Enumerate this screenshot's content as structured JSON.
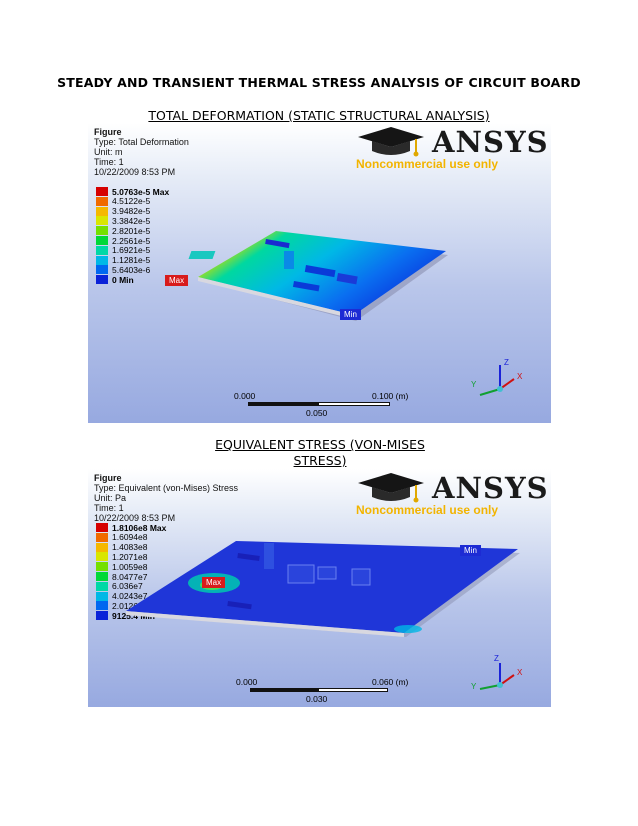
{
  "document": {
    "title": "STEADY AND TRANSIENT THERMAL STRESS ANALYSIS OF CIRCUIT BOARD"
  },
  "figures": [
    {
      "caption": "TOTAL DEFORMATION (STATIC STRUCTURAL ANALYSIS)",
      "info": {
        "heading": "Figure",
        "type": "Type: Total Deformation",
        "unit": "Unit: m",
        "time": "Time: 1",
        "date": "10/22/2009 8:53 PM"
      },
      "logo": {
        "word": "ANSYS",
        "tagline": "Noncommercial use only"
      },
      "legend": [
        {
          "label": "5.0763e-5 Max",
          "color": "#d60000"
        },
        {
          "label": "4.5122e-5",
          "color": "#f06a00"
        },
        {
          "label": "3.9482e-5",
          "color": "#f5b800"
        },
        {
          "label": "3.3842e-5",
          "color": "#d9e600"
        },
        {
          "label": "2.8201e-5",
          "color": "#74e000"
        },
        {
          "label": "2.2561e-5",
          "color": "#00d838"
        },
        {
          "label": "1.6921e-5",
          "color": "#00d8a6"
        },
        {
          "label": "1.1281e-5",
          "color": "#00b8e6"
        },
        {
          "label": "5.6403e-6",
          "color": "#0067f0"
        },
        {
          "label": "0 Min",
          "color": "#0a22d8"
        }
      ],
      "max_tag": "Max",
      "min_tag": "Min",
      "scale": {
        "start": "0.000",
        "mid": "0.050",
        "end": "0.100 (m)"
      },
      "axes": {
        "z": "Z",
        "y": "Y",
        "x": "X"
      }
    },
    {
      "caption": "EQUIVALENT STRESS (VON-MISES STRESS)",
      "caption_line1": "EQUIVALENT STRESS  (VON-MISES",
      "caption_line2": "STRESS)",
      "info": {
        "heading": "Figure",
        "type": "Type: Equivalent (von-Mises) Stress",
        "unit": "Unit: Pa",
        "time": "Time: 1",
        "date": "10/22/2009 8:53 PM"
      },
      "logo": {
        "word": "ANSYS",
        "tagline": "Noncommercial use only"
      },
      "legend": [
        {
          "label": "1.8106e8 Max",
          "color": "#d60000"
        },
        {
          "label": "1.6094e8",
          "color": "#f06a00"
        },
        {
          "label": "1.4083e8",
          "color": "#f5b800"
        },
        {
          "label": "1.2071e8",
          "color": "#d9e600"
        },
        {
          "label": "1.0059e8",
          "color": "#74e000"
        },
        {
          "label": "8.0477e7",
          "color": "#00d838"
        },
        {
          "label": "6.036e7",
          "color": "#00d8a6"
        },
        {
          "label": "4.0243e7",
          "color": "#00b8e6"
        },
        {
          "label": "2.0126e7",
          "color": "#0067f0"
        },
        {
          "label": "9125.4 Min",
          "color": "#0a22d8"
        }
      ],
      "max_tag": "Max",
      "min_tag": "Min",
      "scale": {
        "start": "0.000",
        "mid": "0.030",
        "end": "0.060 (m)"
      },
      "axes": {
        "z": "Z",
        "y": "Y",
        "x": "X"
      }
    }
  ]
}
